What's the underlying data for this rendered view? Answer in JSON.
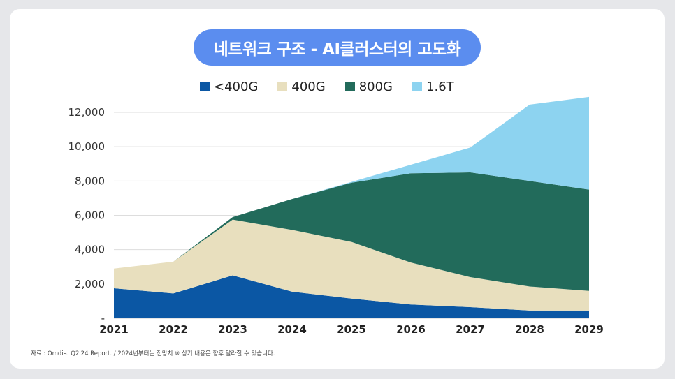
{
  "title": "네트워크 구조 - AI클러스터의 고도화",
  "footnote": "자료 : Omdia. Q2'24 Report. / 2024년부터는 전망치 ※ 상기 내용은 향후 달라질 수 있습니다.",
  "colors": {
    "background": "#e6e7ea",
    "card": "#ffffff",
    "title_pill": "#5b8def",
    "lt400G": "#0b57a4",
    "400G": "#e8dfbe",
    "800G": "#226b5b",
    "1.6T": "#8dd3f0",
    "grid": "#dddddd"
  },
  "chart_data": {
    "type": "area",
    "stacked": true,
    "categories": [
      "2021",
      "2022",
      "2023",
      "2024",
      "2025",
      "2026",
      "2027",
      "2028",
      "2029"
    ],
    "series": [
      {
        "name": "<400G",
        "color": "#0b57a4",
        "values": [
          1750,
          1450,
          2500,
          1550,
          1150,
          800,
          650,
          450,
          450
        ]
      },
      {
        "name": "400G",
        "color": "#e8dfbe",
        "values": [
          1150,
          1850,
          3250,
          3600,
          3300,
          2450,
          1750,
          1400,
          1150
        ]
      },
      {
        "name": "800G",
        "color": "#226b5b",
        "values": [
          0,
          0,
          150,
          1800,
          3450,
          5200,
          6100,
          6150,
          5900
        ]
      },
      {
        "name": "1.6T",
        "color": "#8dd3f0",
        "values": [
          0,
          0,
          0,
          0,
          50,
          500,
          1450,
          4450,
          5400
        ]
      }
    ],
    "ylim": [
      0,
      12000
    ],
    "yticks": [
      0,
      2000,
      4000,
      6000,
      8000,
      10000,
      12000
    ],
    "ytick_labels": [
      "-",
      "2,000",
      "4,000",
      "6,000",
      "8,000",
      "10,000",
      "12,000"
    ],
    "grid": true,
    "legend_position": "top-center"
  }
}
